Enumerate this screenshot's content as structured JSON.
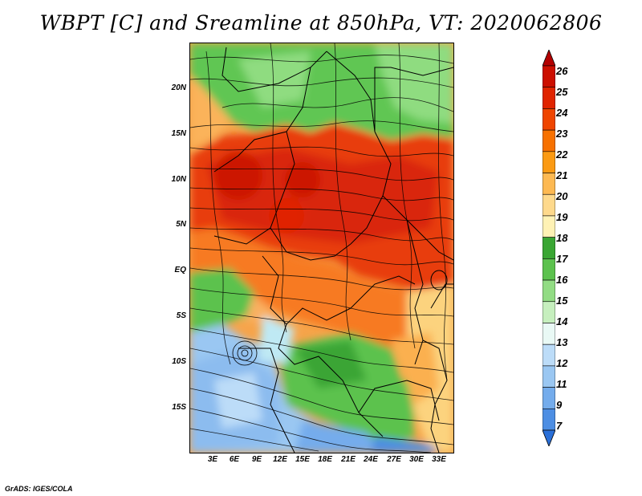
{
  "title": "WBPT [C] and Sreamline at 850hPa, VT: 2020062806",
  "credit": "GrADS: IGES/COLA",
  "map": {
    "lat_labels": [
      "20N",
      "15N",
      "10N",
      "5N",
      "EQ",
      "5S",
      "10S",
      "15S"
    ],
    "lon_labels": [
      "3E",
      "6E",
      "9E",
      "12E",
      "15E",
      "18E",
      "21E",
      "24E",
      "27E",
      "30E",
      "33E"
    ]
  },
  "colorbar": {
    "labels": [
      "26",
      "25",
      "24",
      "23",
      "22",
      "21",
      "20",
      "19",
      "18",
      "17",
      "16",
      "15",
      "14",
      "13",
      "12",
      "11",
      "9",
      "7"
    ],
    "colors": [
      "#b30000",
      "#cc0f00",
      "#e02400",
      "#ef4500",
      "#f77100",
      "#fb9a13",
      "#fdb952",
      "#fed98c",
      "#fff2b5",
      "#3aa633",
      "#5cc24e",
      "#92dc84",
      "#c6efbe",
      "#e9f9f5",
      "#bcdcf8",
      "#9ac7f2",
      "#74acec",
      "#4d8ee3",
      "#2a6fd8"
    ]
  }
}
